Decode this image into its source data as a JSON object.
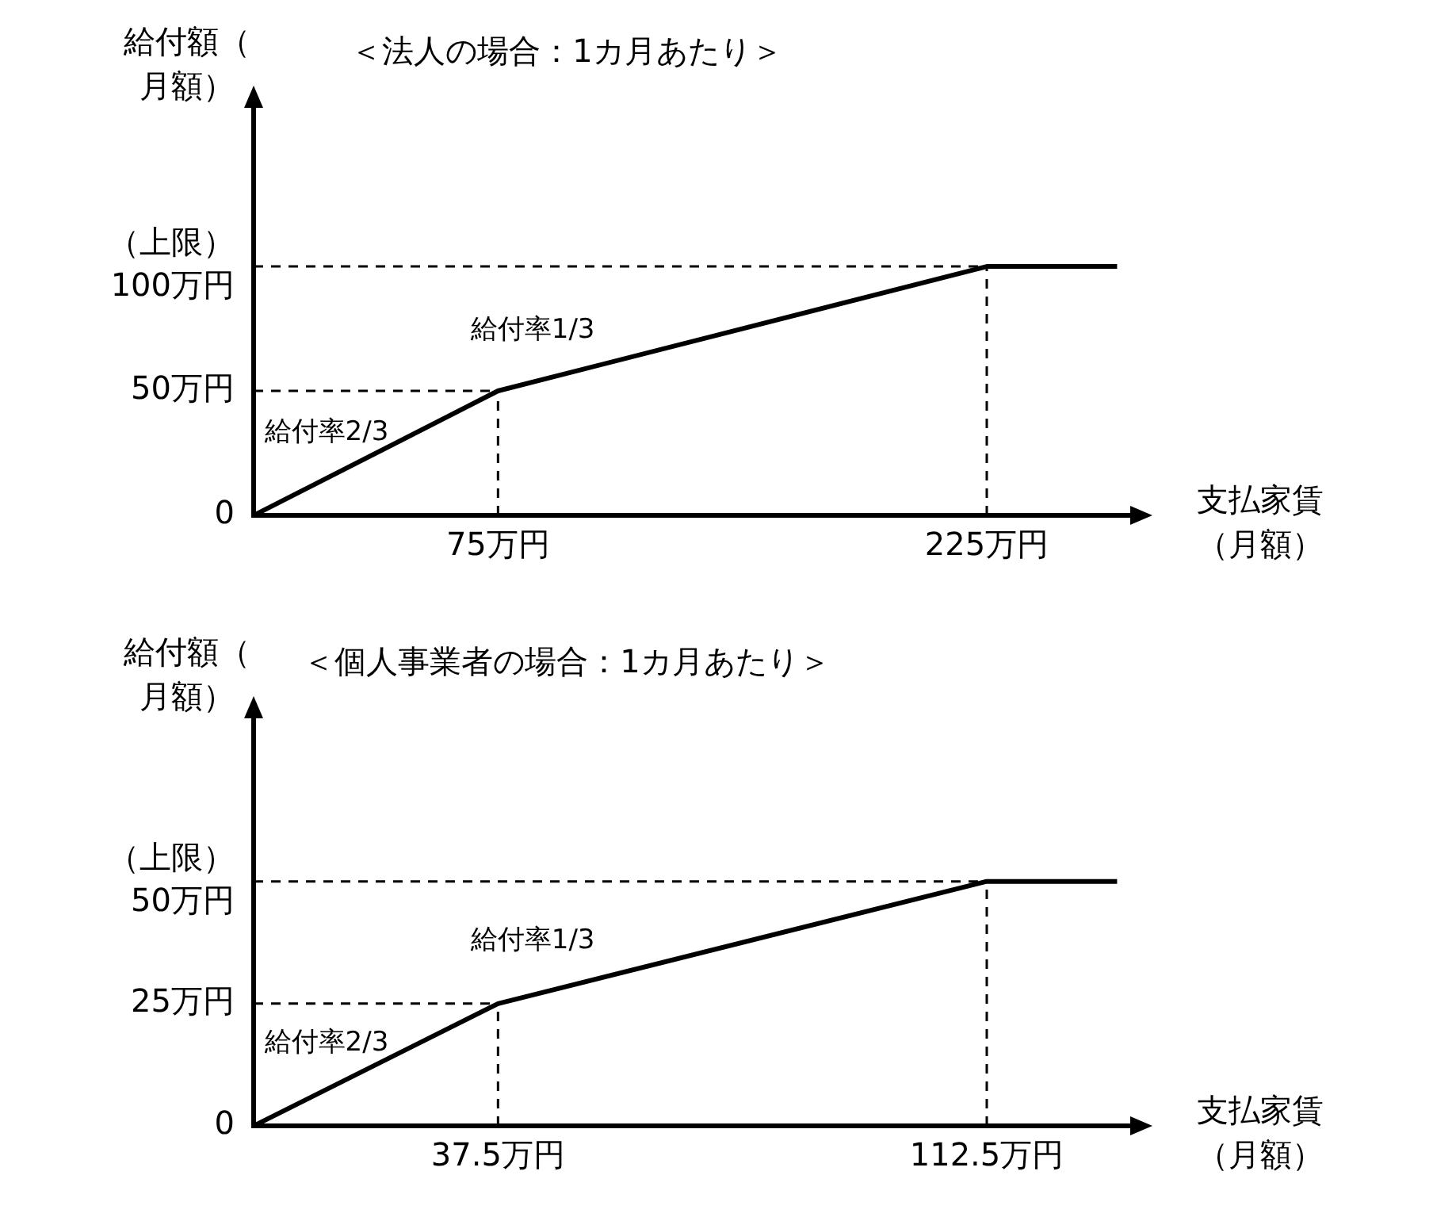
{
  "chart_data": [
    {
      "type": "line",
      "title": "＜法人の場合：1カ月あたり＞",
      "xlabel": "支払家賃（月額）",
      "ylabel": "給付額（月額）",
      "x": [
        0,
        75,
        225,
        265
      ],
      "series": [
        {
          "color": "#000000",
          "values": [
            0,
            50,
            100,
            100
          ]
        }
      ],
      "xlim": [
        0,
        270
      ],
      "ylim": [
        0,
        165
      ],
      "xticks": [
        {
          "value": 75,
          "label": "75万円"
        },
        {
          "value": 225,
          "label": "225万円"
        }
      ],
      "yticks": [
        {
          "value": 0,
          "label": "0"
        },
        {
          "value": 50,
          "label": "50万円"
        },
        {
          "value": 100,
          "label": "（上限）\n100万円"
        }
      ],
      "ref_lines": [
        {
          "axis": "y",
          "value": 50,
          "color": "#000000",
          "line_style": "dashed"
        },
        {
          "axis": "y",
          "value": 100,
          "color": "#000000",
          "line_style": "dashed"
        },
        {
          "axis": "x",
          "value": 75,
          "color": "#000000",
          "line_style": "dashed"
        },
        {
          "axis": "x",
          "value": 225,
          "color": "#000000",
          "line_style": "dashed"
        }
      ],
      "annotations": [
        "給付率2/3",
        "給付率1/3"
      ],
      "grid": false,
      "legend": false,
      "marker": "none",
      "line_style": "solid"
    },
    {
      "type": "line",
      "title": "＜個人事業者の場合：1カ月あたり＞",
      "xlabel": "支払家賃（月額）",
      "ylabel": "給付額（月額）",
      "x": [
        0,
        37.5,
        112.5,
        132.5
      ],
      "series": [
        {
          "color": "#000000",
          "values": [
            0,
            25,
            50,
            50
          ]
        }
      ],
      "xlim": [
        0,
        135
      ],
      "ylim": [
        0,
        84
      ],
      "xticks": [
        {
          "value": 37.5,
          "label": "37.5万円"
        },
        {
          "value": 112.5,
          "label": "112.5万円"
        }
      ],
      "yticks": [
        {
          "value": 0,
          "label": "0"
        },
        {
          "value": 25,
          "label": "25万円"
        },
        {
          "value": 50,
          "label": "（上限）\n50万円"
        }
      ],
      "ref_lines": [
        {
          "axis": "y",
          "value": 25,
          "color": "#000000",
          "line_style": "dashed"
        },
        {
          "axis": "y",
          "value": 50,
          "color": "#000000",
          "line_style": "dashed"
        },
        {
          "axis": "x",
          "value": 37.5,
          "color": "#000000",
          "line_style": "dashed"
        },
        {
          "axis": "x",
          "value": 112.5,
          "color": "#000000",
          "line_style": "dashed"
        }
      ],
      "annotations": [
        "給付率2/3",
        "給付率1/3"
      ],
      "grid": false,
      "legend": false,
      "marker": "none",
      "line_style": "solid"
    }
  ]
}
